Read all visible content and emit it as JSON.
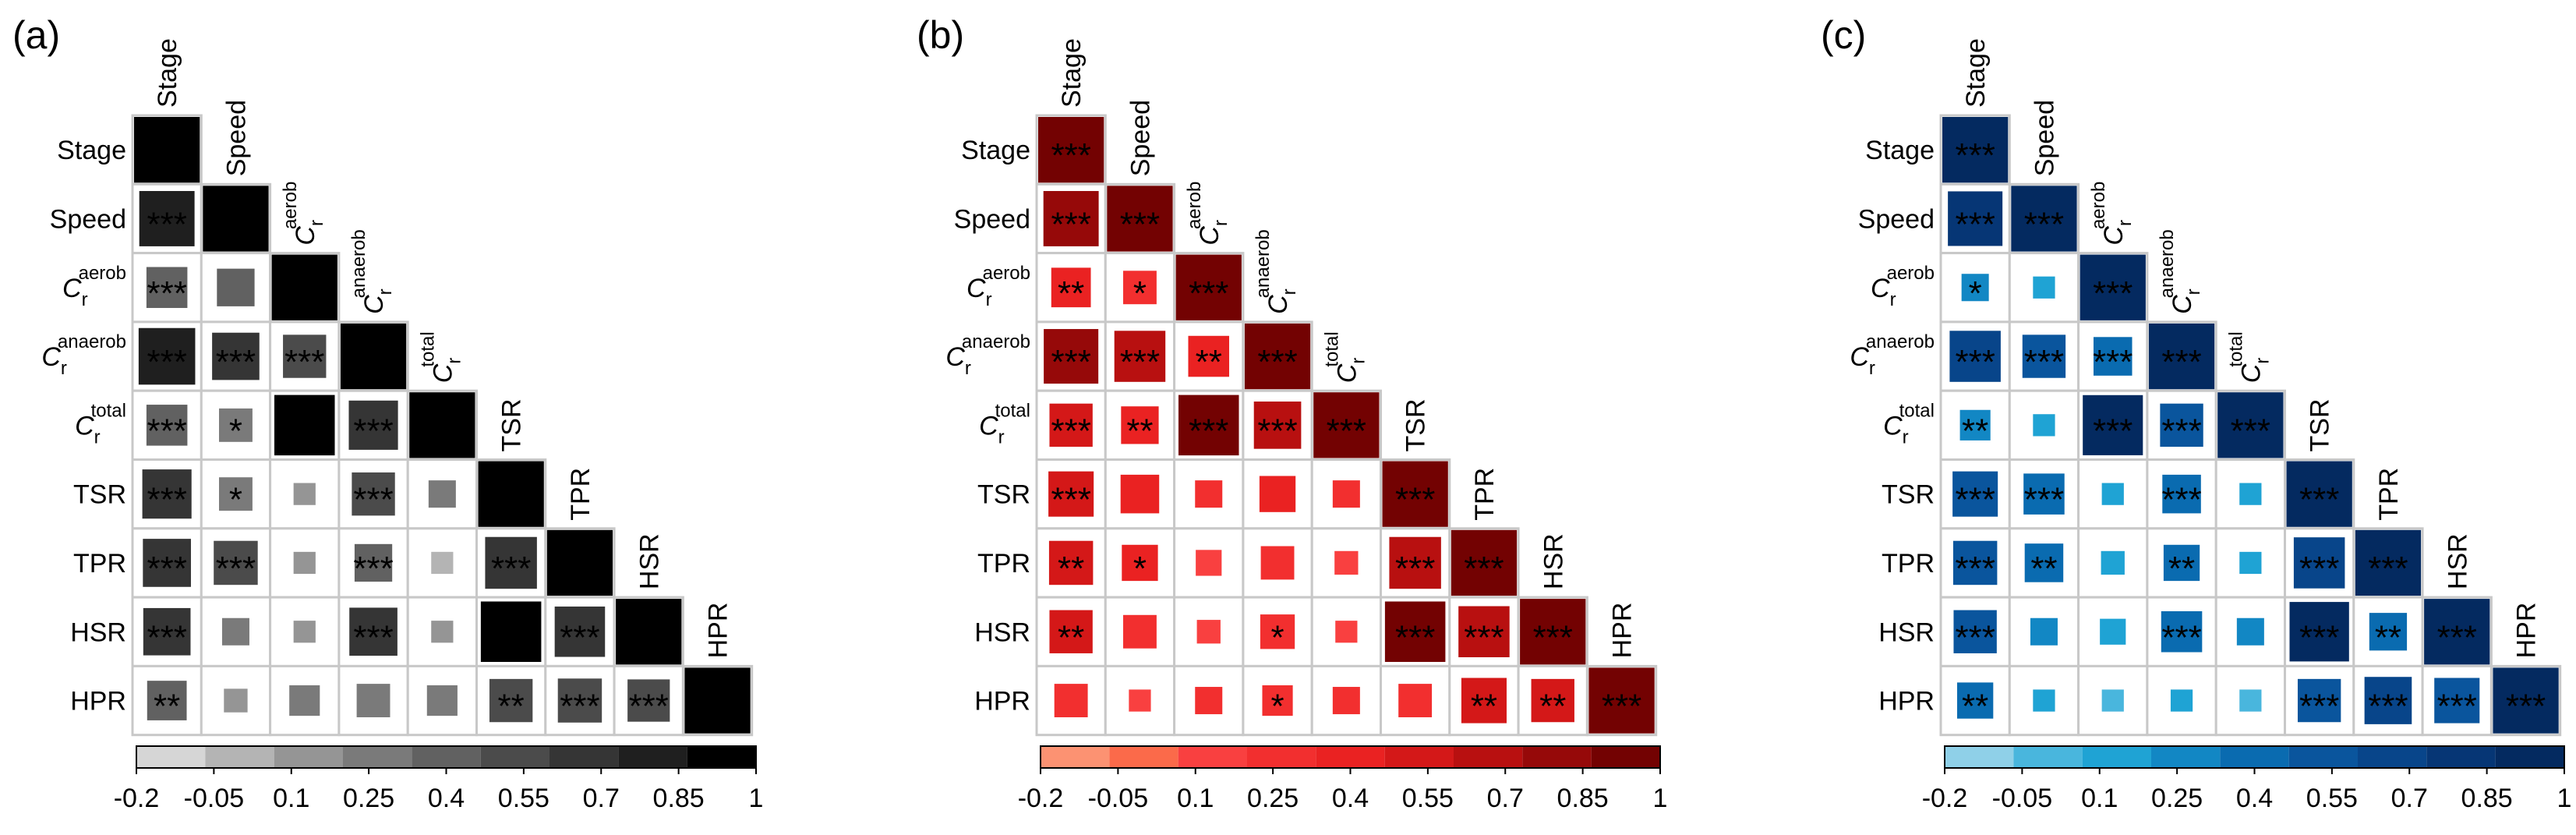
{
  "variables": [
    "Stage",
    "Speed",
    "C_r^aerob",
    "C_r^anaerob",
    "C_r^total",
    "TSR",
    "TPR",
    "HSR",
    "HPR"
  ],
  "var_labels": [
    {
      "base": "Stage",
      "sub": "",
      "sup": ""
    },
    {
      "base": "Speed",
      "sub": "",
      "sup": ""
    },
    {
      "base": "C",
      "sub": "r",
      "sup": "aerob"
    },
    {
      "base": "C",
      "sub": "r",
      "sup": "anaerob"
    },
    {
      "base": "C",
      "sub": "r",
      "sup": "total"
    },
    {
      "base": "TSR",
      "sub": "",
      "sup": ""
    },
    {
      "base": "TPR",
      "sub": "",
      "sup": ""
    },
    {
      "base": "HSR",
      "sub": "",
      "sup": ""
    },
    {
      "base": "HPR",
      "sub": "",
      "sup": ""
    }
  ],
  "colorbar": {
    "tick_labels": [
      "-0.2",
      "-0.05",
      "0.1",
      "0.25",
      "0.4",
      "0.55",
      "0.7",
      "0.85",
      "1"
    ]
  },
  "chart_data": [
    {
      "type": "heatmap",
      "panel_label": "(a)",
      "variables": [
        "Stage",
        "Speed",
        "C_r^aerob",
        "C_r^anaerob",
        "C_r^total",
        "TSR",
        "TPR",
        "HSR",
        "HPR"
      ],
      "lower_triangle_values": [
        [
          1
        ],
        [
          0.82,
          1
        ],
        [
          0.45,
          0.38,
          1
        ],
        [
          0.86,
          0.6,
          0.5,
          1
        ],
        [
          0.45,
          0.3,
          0.98,
          0.65,
          1
        ],
        [
          0.65,
          0.3,
          0.1,
          0.5,
          0.2,
          1
        ],
        [
          0.62,
          0.52,
          0.12,
          0.38,
          0.06,
          0.72,
          1
        ],
        [
          0.6,
          0.2,
          0.12,
          0.62,
          0.1,
          0.98,
          0.68,
          1
        ],
        [
          0.42,
          0.15,
          0.25,
          0.3,
          0.25,
          0.5,
          0.52,
          0.48,
          1
        ]
      ],
      "significance": [
        [
          ""
        ],
        [
          "***",
          ""
        ],
        [
          "***",
          "",
          ""
        ],
        [
          "***",
          "***",
          "***",
          ""
        ],
        [
          "***",
          "*",
          "",
          "***",
          ""
        ],
        [
          "***",
          "*",
          "",
          "***",
          "",
          ""
        ],
        [
          "***",
          "***",
          "",
          "***",
          "",
          "***",
          ""
        ],
        [
          "***",
          "",
          "",
          "***",
          "",
          "",
          "***",
          ""
        ],
        [
          "**",
          "",
          "",
          "",
          "",
          "**",
          "***",
          "***",
          ""
        ]
      ],
      "color_scale": [
        "#d6d6d6",
        "#b4b4b4",
        "#959595",
        "#7a7a7a",
        "#616161",
        "#4b4b4b",
        "#353535",
        "#1f1f1f",
        "#000000"
      ],
      "colorbar_ticks": [
        -0.2,
        -0.05,
        0.1,
        0.25,
        0.4,
        0.55,
        0.7,
        0.85,
        1
      ],
      "range": [
        -0.2,
        1
      ]
    },
    {
      "type": "heatmap",
      "panel_label": "(b)",
      "variables": [
        "Stage",
        "Speed",
        "C_r^aerob",
        "C_r^anaerob",
        "C_r^total",
        "TSR",
        "TPR",
        "HSR",
        "HPR"
      ],
      "lower_triangle_values": [
        [
          1
        ],
        [
          0.82,
          1
        ],
        [
          0.42,
          0.3,
          1
        ],
        [
          0.8,
          0.7,
          0.45,
          1
        ],
        [
          0.5,
          0.38,
          0.98,
          0.6,
          1
        ],
        [
          0.55,
          0.4,
          0.2,
          0.35,
          0.2,
          1
        ],
        [
          0.52,
          0.35,
          0.18,
          0.3,
          0.15,
          0.72,
          1
        ],
        [
          0.5,
          0.3,
          0.15,
          0.32,
          0.12,
          0.98,
          0.7,
          1
        ],
        [
          0.3,
          0.1,
          0.2,
          0.25,
          0.2,
          0.3,
          0.55,
          0.5,
          1
        ]
      ],
      "significance": [
        [
          "***"
        ],
        [
          "***",
          "***"
        ],
        [
          "**",
          "*",
          "***"
        ],
        [
          "***",
          "***",
          "**",
          "***"
        ],
        [
          "***",
          "**",
          "***",
          "***",
          "***"
        ],
        [
          "***",
          "",
          "",
          "",
          "",
          "***"
        ],
        [
          "**",
          "*",
          "",
          "",
          "",
          "***",
          "***"
        ],
        [
          "**",
          "",
          "",
          "*",
          "",
          "***",
          "***",
          "***"
        ],
        [
          "",
          "",
          "",
          "*",
          "",
          "",
          "**",
          "**",
          "***"
        ]
      ],
      "color_scale": [
        "#fc9272",
        "#fb6a4a",
        "#f94040",
        "#f22f2f",
        "#ea2222",
        "#d41818",
        "#b81010",
        "#960909",
        "#730202"
      ],
      "colorbar_ticks": [
        -0.2,
        -0.05,
        0.1,
        0.25,
        0.4,
        0.55,
        0.7,
        0.85,
        1
      ],
      "range": [
        -0.2,
        1
      ]
    },
    {
      "type": "heatmap",
      "panel_label": "(c)",
      "variables": [
        "Stage",
        "Speed",
        "C_r^aerob",
        "C_r^anaerob",
        "C_r^total",
        "TSR",
        "TPR",
        "HSR",
        "HPR"
      ],
      "lower_triangle_values": [
        [
          1
        ],
        [
          0.8,
          1
        ],
        [
          0.2,
          0.1,
          1
        ],
        [
          0.7,
          0.5,
          0.4,
          1
        ],
        [
          0.25,
          0.1,
          0.97,
          0.5,
          1
        ],
        [
          0.55,
          0.45,
          0.12,
          0.4,
          0.12,
          1
        ],
        [
          0.52,
          0.4,
          0.15,
          0.35,
          0.08,
          0.7,
          1
        ],
        [
          0.5,
          0.2,
          0.18,
          0.45,
          0.2,
          0.95,
          0.38,
          1
        ],
        [
          0.35,
          0.12,
          0.05,
          0.1,
          0.05,
          0.5,
          0.6,
          0.55,
          1
        ]
      ],
      "significance": [
        [
          "***"
        ],
        [
          "***",
          "***"
        ],
        [
          "*",
          "",
          "***"
        ],
        [
          "***",
          "***",
          "***",
          "***"
        ],
        [
          "**",
          "",
          "***",
          "***",
          "***"
        ],
        [
          "***",
          "***",
          "",
          "***",
          "",
          "***"
        ],
        [
          "***",
          "**",
          "",
          "**",
          "",
          "***",
          "***"
        ],
        [
          "***",
          "",
          "",
          "***",
          "",
          "***",
          "**",
          "***"
        ],
        [
          "**",
          "",
          "",
          "",
          "",
          "***",
          "***",
          "***",
          "***"
        ]
      ],
      "color_scale": [
        "#8fd0e8",
        "#49b6dd",
        "#1fa3d4",
        "#1287c4",
        "#0a6bb0",
        "#0a559d",
        "#08458a",
        "#063675",
        "#042a60"
      ],
      "colorbar_ticks": [
        -0.2,
        -0.05,
        0.1,
        0.25,
        0.4,
        0.55,
        0.7,
        0.85,
        1
      ],
      "range": [
        -0.2,
        1
      ]
    }
  ]
}
